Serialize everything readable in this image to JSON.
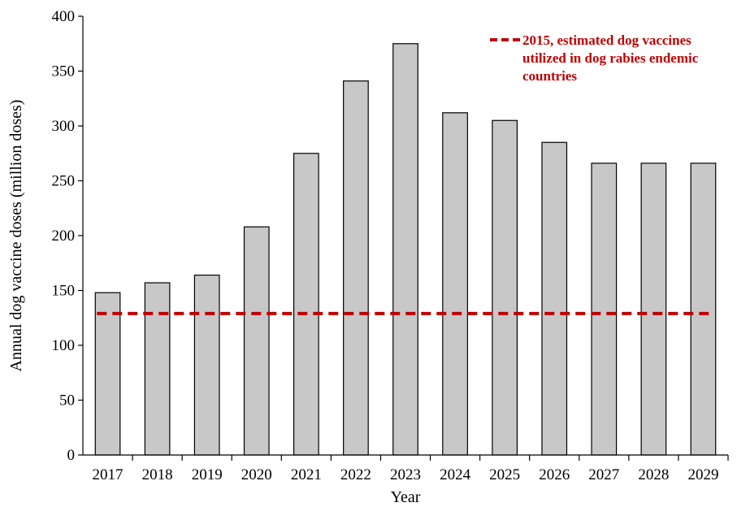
{
  "chart_data": {
    "type": "bar",
    "title": "",
    "xlabel": "Year",
    "ylabel": "Annual dog vaccine doses (million doses)",
    "categories": [
      "2017",
      "2018",
      "2019",
      "2020",
      "2021",
      "2022",
      "2023",
      "2024",
      "2025",
      "2026",
      "2027",
      "2028",
      "2029"
    ],
    "series": [
      {
        "values": [
          148,
          157,
          164,
          208,
          275,
          341,
          375,
          312,
          305,
          285,
          266,
          266,
          266
        ],
        "color": "#c8c8c8"
      }
    ],
    "reference_line": {
      "name": "2015, estimated dog vaccines utilized in dog rabies endemic countries",
      "label_lines": [
        "2015, estimated dog vaccines",
        "utilized in dog rabies endemic",
        "countries"
      ],
      "value": 129,
      "color": "#c00000",
      "style": "dashed"
    },
    "ylim": [
      0,
      400
    ],
    "yticks": [
      0,
      50,
      100,
      150,
      200,
      250,
      300,
      350,
      400
    ],
    "grid": false,
    "legend_position": "top-right"
  }
}
